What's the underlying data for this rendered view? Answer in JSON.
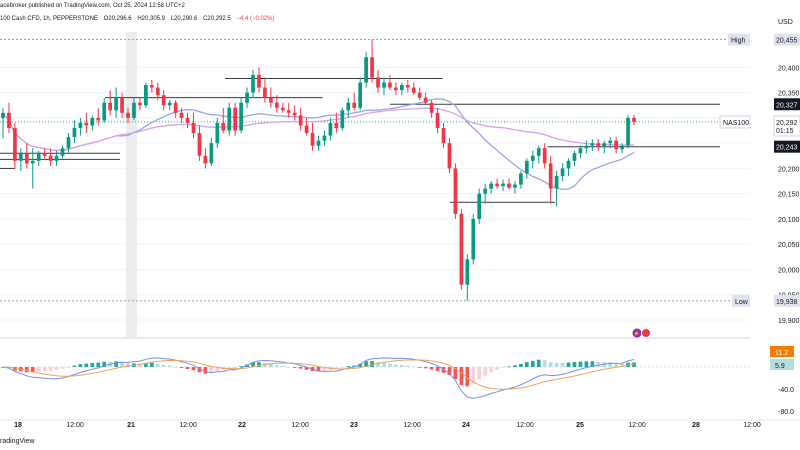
{
  "header": {
    "publisher": "acebroker published on TradingView.com, Oct 25, 2024 12:58 UTC+2",
    "symbol": "100 Cash CFD, 1h, PEPPERSTONE",
    "ohlc": {
      "o": "O20,296.6",
      "h": "H20,305.9",
      "l": "L20,290.6",
      "c": "C20,292.5",
      "chg": "−4.4 (−0.02%)"
    },
    "currency": "USD"
  },
  "footer": {
    "logo": "radingView"
  },
  "colors": {
    "up": "#089981",
    "down": "#f23645",
    "ma_fast": "#9aa7e6",
    "ma_slow": "#d6a3e6",
    "macd": "#6f93e6",
    "signal": "#f0a35a"
  },
  "chart_data": [
    {
      "type": "candlestick",
      "title": "NAS100, 1h",
      "y_axis_ticks": [
        20400,
        20350,
        20300,
        20250,
        20200,
        20150,
        20100,
        20050,
        20000,
        19950,
        19900
      ],
      "y_tick_labels": [
        "20,400",
        "20,350",
        "",
        "",
        "20,200",
        "20,150",
        "20,100",
        "20,050",
        "20,000",
        "19,950",
        "19,900"
      ],
      "x_axis_ticks": [
        "18",
        "12:00",
        "21",
        "12:00",
        "22",
        "12:00",
        "23",
        "12:00",
        "24",
        "12:00",
        "25",
        "12:00",
        "28",
        "12:00"
      ],
      "ylim": [
        19900,
        20470
      ],
      "price_labels": [
        {
          "label": "High",
          "value": "20,455",
          "price": 20455
        },
        {
          "label": "",
          "value": "20,327",
          "price": 20327
        },
        {
          "label": "NAS100",
          "value": "20,292",
          "sub": "01:15",
          "price": 20292
        },
        {
          "label": "",
          "value": "20,243",
          "price": 20243
        },
        {
          "label": "Low",
          "value": "19,938",
          "price": 19938
        }
      ],
      "candles": [
        {
          "o": 20300,
          "h": 20320,
          "l": 20260,
          "c": 20310
        },
        {
          "o": 20310,
          "h": 20330,
          "l": 20270,
          "c": 20280
        },
        {
          "o": 20280,
          "h": 20290,
          "l": 20200,
          "c": 20215
        },
        {
          "o": 20215,
          "h": 20240,
          "l": 20195,
          "c": 20230
        },
        {
          "o": 20230,
          "h": 20250,
          "l": 20200,
          "c": 20210
        },
        {
          "o": 20210,
          "h": 20240,
          "l": 20160,
          "c": 20215
        },
        {
          "o": 20215,
          "h": 20235,
          "l": 20205,
          "c": 20230
        },
        {
          "o": 20230,
          "h": 20240,
          "l": 20220,
          "c": 20225
        },
        {
          "o": 20225,
          "h": 20240,
          "l": 20205,
          "c": 20215
        },
        {
          "o": 20215,
          "h": 20235,
          "l": 20205,
          "c": 20225
        },
        {
          "o": 20225,
          "h": 20245,
          "l": 20220,
          "c": 20240
        },
        {
          "o": 20240,
          "h": 20270,
          "l": 20230,
          "c": 20262
        },
        {
          "o": 20262,
          "h": 20295,
          "l": 20250,
          "c": 20280
        },
        {
          "o": 20280,
          "h": 20300,
          "l": 20265,
          "c": 20290
        },
        {
          "o": 20290,
          "h": 20310,
          "l": 20270,
          "c": 20285
        },
        {
          "o": 20285,
          "h": 20305,
          "l": 20275,
          "c": 20300
        },
        {
          "o": 20300,
          "h": 20320,
          "l": 20285,
          "c": 20295
        },
        {
          "o": 20295,
          "h": 20340,
          "l": 20290,
          "c": 20330
        },
        {
          "o": 20330,
          "h": 20355,
          "l": 20305,
          "c": 20315
        },
        {
          "o": 20315,
          "h": 20360,
          "l": 20300,
          "c": 20340
        },
        {
          "o": 20340,
          "h": 20350,
          "l": 20300,
          "c": 20310
        },
        {
          "o": 20310,
          "h": 20320,
          "l": 20290,
          "c": 20300
        },
        {
          "o": 20300,
          "h": 20340,
          "l": 20295,
          "c": 20330
        },
        {
          "o": 20330,
          "h": 20340,
          "l": 20315,
          "c": 20325
        },
        {
          "o": 20325,
          "h": 20370,
          "l": 20320,
          "c": 20365
        },
        {
          "o": 20365,
          "h": 20375,
          "l": 20350,
          "c": 20360
        },
        {
          "o": 20360,
          "h": 20370,
          "l": 20335,
          "c": 20345
        },
        {
          "o": 20345,
          "h": 20355,
          "l": 20315,
          "c": 20325
        },
        {
          "o": 20325,
          "h": 20335,
          "l": 20315,
          "c": 20330
        },
        {
          "o": 20330,
          "h": 20335,
          "l": 20300,
          "c": 20310
        },
        {
          "o": 20310,
          "h": 20320,
          "l": 20290,
          "c": 20300
        },
        {
          "o": 20300,
          "h": 20310,
          "l": 20280,
          "c": 20290
        },
        {
          "o": 20290,
          "h": 20310,
          "l": 20260,
          "c": 20270
        },
        {
          "o": 20270,
          "h": 20285,
          "l": 20215,
          "c": 20225
        },
        {
          "o": 20225,
          "h": 20240,
          "l": 20200,
          "c": 20210
        },
        {
          "o": 20210,
          "h": 20260,
          "l": 20205,
          "c": 20250
        },
        {
          "o": 20250,
          "h": 20300,
          "l": 20240,
          "c": 20290
        },
        {
          "o": 20290,
          "h": 20320,
          "l": 20270,
          "c": 20275
        },
        {
          "o": 20275,
          "h": 20330,
          "l": 20265,
          "c": 20320
        },
        {
          "o": 20320,
          "h": 20330,
          "l": 20265,
          "c": 20275
        },
        {
          "o": 20275,
          "h": 20340,
          "l": 20270,
          "c": 20330
        },
        {
          "o": 20330,
          "h": 20360,
          "l": 20320,
          "c": 20350
        },
        {
          "o": 20350,
          "h": 20395,
          "l": 20340,
          "c": 20385
        },
        {
          "o": 20385,
          "h": 20400,
          "l": 20350,
          "c": 20360
        },
        {
          "o": 20360,
          "h": 20380,
          "l": 20330,
          "c": 20340
        },
        {
          "o": 20340,
          "h": 20360,
          "l": 20320,
          "c": 20330
        },
        {
          "o": 20330,
          "h": 20345,
          "l": 20310,
          "c": 20320
        },
        {
          "o": 20320,
          "h": 20330,
          "l": 20310,
          "c": 20315
        },
        {
          "o": 20315,
          "h": 20330,
          "l": 20300,
          "c": 20310
        },
        {
          "o": 20310,
          "h": 20325,
          "l": 20295,
          "c": 20305
        },
        {
          "o": 20305,
          "h": 20320,
          "l": 20275,
          "c": 20285
        },
        {
          "o": 20285,
          "h": 20300,
          "l": 20265,
          "c": 20270
        },
        {
          "o": 20270,
          "h": 20290,
          "l": 20235,
          "c": 20245
        },
        {
          "o": 20245,
          "h": 20265,
          "l": 20235,
          "c": 20255
        },
        {
          "o": 20255,
          "h": 20275,
          "l": 20245,
          "c": 20265
        },
        {
          "o": 20265,
          "h": 20300,
          "l": 20255,
          "c": 20290
        },
        {
          "o": 20290,
          "h": 20310,
          "l": 20270,
          "c": 20280
        },
        {
          "o": 20280,
          "h": 20320,
          "l": 20275,
          "c": 20315
        },
        {
          "o": 20315,
          "h": 20340,
          "l": 20300,
          "c": 20330
        },
        {
          "o": 20330,
          "h": 20350,
          "l": 20315,
          "c": 20320
        },
        {
          "o": 20320,
          "h": 20380,
          "l": 20315,
          "c": 20370
        },
        {
          "o": 20370,
          "h": 20430,
          "l": 20360,
          "c": 20420
        },
        {
          "o": 20420,
          "h": 20455,
          "l": 20370,
          "c": 20380
        },
        {
          "o": 20380,
          "h": 20395,
          "l": 20350,
          "c": 20360
        },
        {
          "o": 20360,
          "h": 20380,
          "l": 20345,
          "c": 20370
        },
        {
          "o": 20370,
          "h": 20385,
          "l": 20355,
          "c": 20360
        },
        {
          "o": 20360,
          "h": 20370,
          "l": 20345,
          "c": 20355
        },
        {
          "o": 20355,
          "h": 20370,
          "l": 20345,
          "c": 20365
        },
        {
          "o": 20365,
          "h": 20375,
          "l": 20350,
          "c": 20360
        },
        {
          "o": 20360,
          "h": 20370,
          "l": 20345,
          "c": 20350
        },
        {
          "o": 20350,
          "h": 20360,
          "l": 20335,
          "c": 20340
        },
        {
          "o": 20340,
          "h": 20350,
          "l": 20325,
          "c": 20330
        },
        {
          "o": 20330,
          "h": 20335,
          "l": 20300,
          "c": 20310
        },
        {
          "o": 20310,
          "h": 20320,
          "l": 20270,
          "c": 20280
        },
        {
          "o": 20280,
          "h": 20290,
          "l": 20240,
          "c": 20250
        },
        {
          "o": 20250,
          "h": 20260,
          "l": 20190,
          "c": 20200
        },
        {
          "o": 20200,
          "h": 20210,
          "l": 20100,
          "c": 20110
        },
        {
          "o": 20110,
          "h": 20120,
          "l": 19960,
          "c": 19970
        },
        {
          "o": 19970,
          "h": 20030,
          "l": 19938,
          "c": 20020
        },
        {
          "o": 20020,
          "h": 20110,
          "l": 20010,
          "c": 20100
        },
        {
          "o": 20100,
          "h": 20160,
          "l": 20090,
          "c": 20150
        },
        {
          "o": 20150,
          "h": 20170,
          "l": 20130,
          "c": 20160
        },
        {
          "o": 20160,
          "h": 20175,
          "l": 20150,
          "c": 20170
        },
        {
          "o": 20170,
          "h": 20180,
          "l": 20160,
          "c": 20165
        },
        {
          "o": 20165,
          "h": 20178,
          "l": 20155,
          "c": 20170
        },
        {
          "o": 20170,
          "h": 20180,
          "l": 20158,
          "c": 20162
        },
        {
          "o": 20162,
          "h": 20175,
          "l": 20150,
          "c": 20168
        },
        {
          "o": 20168,
          "h": 20195,
          "l": 20160,
          "c": 20190
        },
        {
          "o": 20190,
          "h": 20220,
          "l": 20180,
          "c": 20215
        },
        {
          "o": 20215,
          "h": 20235,
          "l": 20200,
          "c": 20225
        },
        {
          "o": 20225,
          "h": 20245,
          "l": 20210,
          "c": 20240
        },
        {
          "o": 20240,
          "h": 20250,
          "l": 20200,
          "c": 20210
        },
        {
          "o": 20210,
          "h": 20225,
          "l": 20130,
          "c": 20160
        },
        {
          "o": 20160,
          "h": 20195,
          "l": 20125,
          "c": 20185
        },
        {
          "o": 20185,
          "h": 20210,
          "l": 20175,
          "c": 20200
        },
        {
          "o": 20200,
          "h": 20220,
          "l": 20185,
          "c": 20215
        },
        {
          "o": 20215,
          "h": 20235,
          "l": 20205,
          "c": 20230
        },
        {
          "o": 20230,
          "h": 20245,
          "l": 20220,
          "c": 20240
        },
        {
          "o": 20240,
          "h": 20255,
          "l": 20230,
          "c": 20245
        },
        {
          "o": 20245,
          "h": 20258,
          "l": 20235,
          "c": 20250
        },
        {
          "o": 20250,
          "h": 20258,
          "l": 20235,
          "c": 20242
        },
        {
          "o": 20242,
          "h": 20255,
          "l": 20230,
          "c": 20250
        },
        {
          "o": 20250,
          "h": 20262,
          "l": 20240,
          "c": 20255
        },
        {
          "o": 20255,
          "h": 20262,
          "l": 20230,
          "c": 20238
        },
        {
          "o": 20238,
          "h": 20250,
          "l": 20230,
          "c": 20245
        },
        {
          "o": 20245,
          "h": 20305,
          "l": 20240,
          "c": 20300
        },
        {
          "o": 20300,
          "h": 20306,
          "l": 20285,
          "c": 20292
        }
      ],
      "horizontal_levels": [
        {
          "price": 20200,
          "from": 0.0,
          "to": 0.02
        },
        {
          "price": 20230,
          "from": 0.0,
          "to": 0.16
        },
        {
          "price": 20218,
          "from": 0.0,
          "to": 0.16
        },
        {
          "price": 20340,
          "from": 0.14,
          "to": 0.43
        },
        {
          "price": 20378,
          "from": 0.3,
          "to": 0.59
        },
        {
          "price": 20327,
          "from": 0.52,
          "to": 0.96
        },
        {
          "price": 20133,
          "from": 0.6,
          "to": 0.74
        },
        {
          "price": 20243,
          "from": 0.73,
          "to": 0.96
        }
      ]
    },
    {
      "type": "macd",
      "y_axis_ticks": [
        -40,
        -80
      ],
      "tick_labels": [
        "-40.0",
        "-80.0"
      ],
      "value_labels": [
        "11.2",
        "5.9"
      ]
    }
  ]
}
